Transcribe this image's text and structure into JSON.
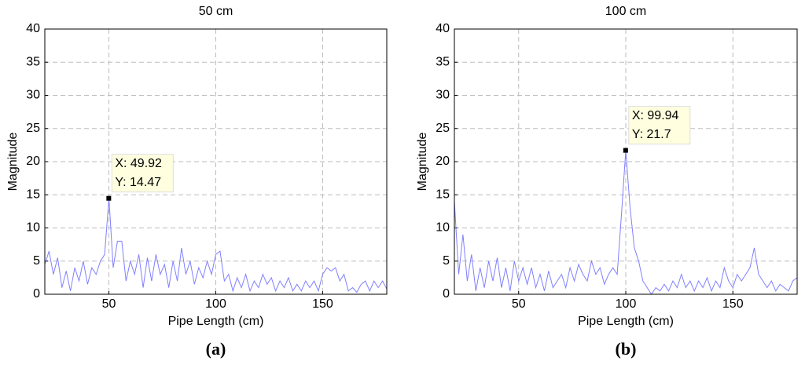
{
  "chart_data": [
    {
      "type": "line",
      "title": "50 cm",
      "xlabel": "Pipe Length (cm)",
      "ylabel": "Magnitude",
      "caption": "(a)",
      "xlim": [
        20,
        180
      ],
      "xticks": [
        50,
        100,
        150
      ],
      "ylim": [
        0,
        40
      ],
      "yticks": [
        0,
        5,
        10,
        15,
        20,
        25,
        30,
        35,
        40
      ],
      "grid": true,
      "x": [
        20,
        22,
        24,
        26,
        28,
        30,
        32,
        34,
        36,
        38,
        40,
        42,
        44,
        46,
        48,
        50,
        52,
        54,
        56,
        58,
        60,
        62,
        64,
        66,
        68,
        70,
        72,
        74,
        76,
        78,
        80,
        82,
        84,
        86,
        88,
        90,
        92,
        94,
        96,
        98,
        100,
        102,
        104,
        106,
        108,
        110,
        112,
        114,
        116,
        118,
        120,
        122,
        124,
        126,
        128,
        130,
        132,
        134,
        136,
        138,
        140,
        142,
        144,
        146,
        148,
        150,
        152,
        154,
        156,
        158,
        160,
        162,
        164,
        166,
        168,
        170,
        172,
        174,
        176,
        178,
        180
      ],
      "series": [
        {
          "color": "#8080ff",
          "values": [
            4.5,
            6.5,
            3,
            5.5,
            1,
            3.5,
            0.5,
            4,
            2,
            5,
            1.5,
            4,
            3,
            5,
            6,
            14.47,
            4,
            8,
            8,
            2,
            5,
            3,
            6,
            1,
            5.5,
            2,
            6,
            3,
            4.5,
            1,
            5,
            2,
            7,
            3,
            5,
            1.5,
            4,
            2.5,
            5,
            3,
            6,
            6.5,
            2,
            3,
            0.5,
            2.5,
            1,
            3,
            0.5,
            2,
            1,
            3,
            1.5,
            2.5,
            0.5,
            2,
            1,
            2.5,
            0.5,
            1.5,
            0.5,
            2,
            1,
            2,
            0.5,
            3,
            4,
            3.5,
            4,
            2,
            3,
            0.5,
            1,
            0.3,
            1.5,
            2,
            0.5,
            2,
            1,
            2,
            0.8
          ]
        }
      ],
      "datatip": {
        "x": 49.92,
        "y": 14.47,
        "lines": [
          "X: 49.92",
          "Y: 14.47"
        ]
      }
    },
    {
      "type": "line",
      "title": "100 cm",
      "xlabel": "Pipe Length (cm)",
      "ylabel": "Magnitude",
      "caption": "(b)",
      "xlim": [
        20,
        180
      ],
      "xticks": [
        50,
        100,
        150
      ],
      "ylim": [
        0,
        40
      ],
      "yticks": [
        0,
        5,
        10,
        15,
        20,
        25,
        30,
        35,
        40
      ],
      "grid": true,
      "x": [
        20,
        22,
        24,
        26,
        28,
        30,
        32,
        34,
        36,
        38,
        40,
        42,
        44,
        46,
        48,
        50,
        52,
        54,
        56,
        58,
        60,
        62,
        64,
        66,
        68,
        70,
        72,
        74,
        76,
        78,
        80,
        82,
        84,
        86,
        88,
        90,
        92,
        94,
        96,
        98,
        100,
        102,
        104,
        106,
        108,
        110,
        112,
        114,
        116,
        118,
        120,
        122,
        124,
        126,
        128,
        130,
        132,
        134,
        136,
        138,
        140,
        142,
        144,
        146,
        148,
        150,
        152,
        154,
        156,
        158,
        160,
        162,
        164,
        166,
        168,
        170,
        172,
        174,
        176,
        178,
        180
      ],
      "series": [
        {
          "color": "#8080ff",
          "values": [
            14,
            3,
            9,
            2,
            6,
            0.5,
            4,
            1,
            5,
            2,
            5.5,
            1,
            4,
            0.5,
            5,
            2,
            4,
            1.5,
            4,
            1,
            3,
            0.5,
            3.5,
            1,
            2,
            3,
            1,
            4,
            2,
            4.5,
            3,
            2,
            5,
            3,
            4,
            1.5,
            3,
            4,
            3,
            12,
            21.7,
            13,
            7,
            5,
            2,
            1,
            0,
            1,
            0.5,
            1.5,
            0.5,
            2,
            1,
            3,
            1,
            2,
            0.5,
            2,
            1,
            2.5,
            0.5,
            2,
            1,
            4,
            2,
            1,
            3,
            2,
            3,
            4,
            7,
            3,
            2,
            1,
            2,
            0.5,
            1.5,
            1,
            0.5,
            2,
            2.5
          ]
        }
      ],
      "datatip": {
        "x": 99.94,
        "y": 21.7,
        "lines": [
          "X: 99.94",
          "Y: 21.7"
        ]
      }
    }
  ]
}
